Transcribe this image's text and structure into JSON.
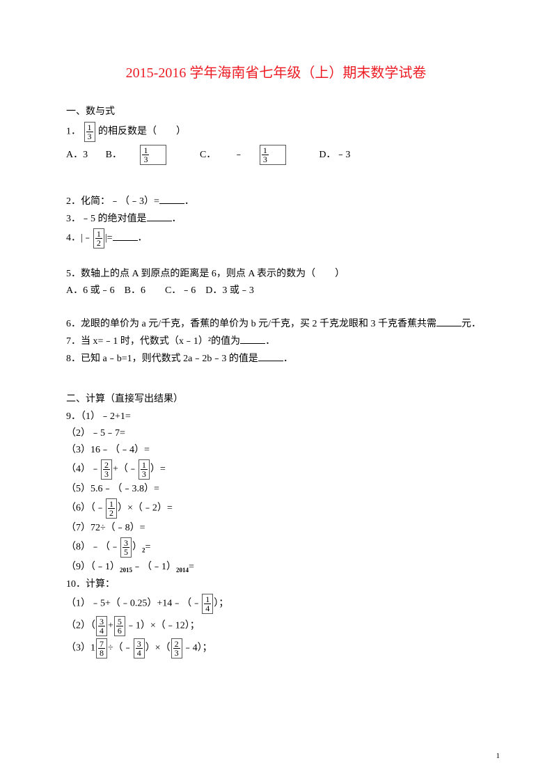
{
  "title_color": "#ed1c24",
  "title_text": "2015-2016 学年海南省七年级（上）期末数学试卷",
  "section1": "一、数与式",
  "q1": {
    "prefix": "1．",
    "text1": "的相反数是（　　）",
    "frac": {
      "n": "1",
      "d": "3"
    },
    "opts": {
      "a_pre": "A．3",
      "b_pre": "B．",
      "b_frac": {
        "n": "1",
        "d": "3"
      },
      "c_pre": "C．",
      "c_neg": "﹣",
      "c_frac": {
        "n": "1",
        "d": "3"
      },
      "d_pre": "D．﹣3"
    }
  },
  "q2": "2．化简：﹣（﹣3）=",
  "q2_end": "．",
  "q3": "3．﹣5 的绝对值是",
  "q3_end": "．",
  "q4_pre": "4．|﹣",
  "q4_frac": {
    "n": "1",
    "d": "2"
  },
  "q4_mid": "|=",
  "q4_end": "．",
  "q5": "5．数轴上的点 A 到原点的距离是 6，则点 A 表示的数为（　　）",
  "q5_opts": "A．6 或﹣6　B．6　　C．﹣6　D．3 或﹣3",
  "q6_a": "6．龙眼的单价为 a 元/千克，香蕉的单价为 b 元/千克，买 2 千克龙眼和 3 千克香蕉共需",
  "q6_b": "元．",
  "q7": "7．当 x=﹣1 时，代数式（x﹣1）²的值为",
  "q7_end": "．",
  "q8": "8．已知 a﹣b=1，则代数式 2a﹣2b﹣3 的值是",
  "q8_end": "．",
  "section2": "二、计算（直接写出结果）",
  "q9_head": "9．（1）﹣2+1=",
  "q9_2": "（2）﹣5﹣7=",
  "q9_3": "（3）16﹣（﹣4）=",
  "q9_4_a": "（4）﹣",
  "q9_4_f1": {
    "n": "2",
    "d": "3"
  },
  "q9_4_b": "+（﹣",
  "q9_4_f2": {
    "n": "1",
    "d": "3"
  },
  "q9_4_c": "）=",
  "q9_5": "（5）5.6﹣（﹣3.8）=",
  "q9_6_a": "（6）（﹣",
  "q9_6_f": {
    "n": "1",
    "d": "2"
  },
  "q9_6_b": "）×（﹣2）=",
  "q9_7": "（7）72÷（﹣8）=",
  "q9_8_a": "（8）﹣（﹣",
  "q9_8_f": {
    "n": "3",
    "d": "5"
  },
  "q9_8_b": "）",
  "q9_8_sup": "2",
  "q9_8_c": "=",
  "q9_9_a": "（9）（﹣1）",
  "q9_9_s1": "2015",
  "q9_9_b": "﹣（﹣1）",
  "q9_9_s2": "2014",
  "q9_9_c": "=",
  "q10_head": "10．计算：",
  "q10_1_a": "（1）﹣5+（﹣0.25）+14﹣（﹣",
  "q10_1_f": {
    "n": "1",
    "d": "4"
  },
  "q10_1_b": "）；",
  "q10_2_a": "（2）（",
  "q10_2_f1": {
    "n": "3",
    "d": "4"
  },
  "q10_2_b": "+",
  "q10_2_f2": {
    "n": "5",
    "d": "6"
  },
  "q10_2_c": "﹣1）×（﹣12）；",
  "q10_3_a": "（3）1",
  "q10_3_f1": {
    "n": "7",
    "d": "8"
  },
  "q10_3_b": "÷（﹣",
  "q10_3_f2": {
    "n": "3",
    "d": "4"
  },
  "q10_3_c": "）×（",
  "q10_3_f3": {
    "n": "2",
    "d": "3"
  },
  "q10_3_d": "﹣4）；",
  "page_number": "1"
}
